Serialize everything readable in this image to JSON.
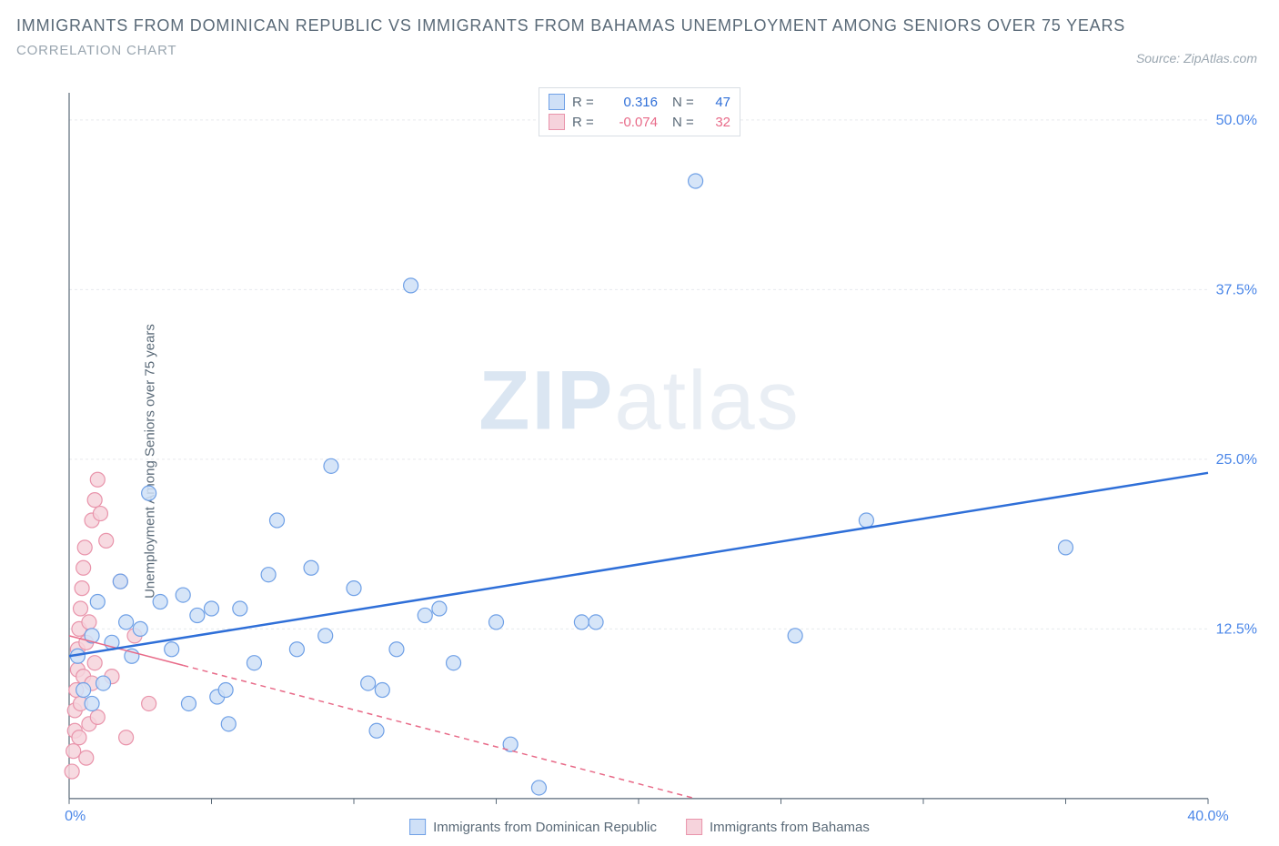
{
  "title_line1": "IMMIGRANTS FROM DOMINICAN REPUBLIC VS IMMIGRANTS FROM BAHAMAS UNEMPLOYMENT AMONG SENIORS OVER 75 YEARS",
  "title_line2": "CORRELATION CHART",
  "source_label": "Source: ZipAtlas.com",
  "y_axis_label": "Unemployment Among Seniors over 75 years",
  "watermark_a": "ZIP",
  "watermark_b": "atlas",
  "chart": {
    "type": "scatter",
    "background_color": "#ffffff",
    "grid_color": "#e6e9ed",
    "axis_line_color": "#5a6a78",
    "label_color": "#4a86e8",
    "xlim": [
      0,
      40
    ],
    "ylim": [
      0,
      52
    ],
    "xtick_labels": {
      "0": "0.0%",
      "40": "40.0%"
    },
    "xtick_positions": [
      0,
      5,
      10,
      15,
      20,
      25,
      30,
      35,
      40
    ],
    "ytick_labels": {
      "12.5": "12.5%",
      "25": "25.0%",
      "37.5": "37.5%",
      "50": "50.0%"
    },
    "ytick_positions": [
      12.5,
      25,
      37.5,
      50
    ],
    "legend_panel": {
      "series1": {
        "r_label": "R =",
        "r_value": "0.316",
        "r_color": "#2f6fd8",
        "n_label": "N =",
        "n_value": "47"
      },
      "series2": {
        "r_label": "R =",
        "r_value": "-0.074",
        "r_color": "#e86a88",
        "n_label": "N =",
        "n_value": "32"
      }
    },
    "bottom_legend": {
      "series1_label": "Immigrants from Dominican Republic",
      "series2_label": "Immigrants from Bahamas"
    },
    "series": [
      {
        "name": "Immigrants from Dominican Republic",
        "marker_color_fill": "#cfe0f7",
        "marker_color_stroke": "#6fa0e6",
        "marker_radius": 8,
        "trend_line_color": "#2f6fd8",
        "trend_line_width": 2.5,
        "trend_line_dash": "none",
        "trend": {
          "x1": 0,
          "y1": 10.5,
          "x2": 40,
          "y2": 24.0
        },
        "points": [
          [
            0.3,
            10.5
          ],
          [
            0.5,
            8.0
          ],
          [
            0.8,
            7.0
          ],
          [
            0.8,
            12.0
          ],
          [
            1.0,
            14.5
          ],
          [
            1.2,
            8.5
          ],
          [
            1.5,
            11.5
          ],
          [
            1.8,
            16.0
          ],
          [
            2.0,
            13.0
          ],
          [
            2.2,
            10.5
          ],
          [
            2.5,
            12.5
          ],
          [
            2.8,
            22.5
          ],
          [
            3.2,
            14.5
          ],
          [
            3.6,
            11.0
          ],
          [
            4.0,
            15.0
          ],
          [
            4.2,
            7.0
          ],
          [
            4.5,
            13.5
          ],
          [
            5.0,
            14.0
          ],
          [
            5.2,
            7.5
          ],
          [
            5.5,
            8.0
          ],
          [
            5.6,
            5.5
          ],
          [
            6.0,
            14.0
          ],
          [
            6.5,
            10.0
          ],
          [
            7.0,
            16.5
          ],
          [
            7.3,
            20.5
          ],
          [
            8.0,
            11.0
          ],
          [
            8.5,
            17.0
          ],
          [
            9.0,
            12.0
          ],
          [
            9.2,
            24.5
          ],
          [
            10.0,
            15.5
          ],
          [
            10.5,
            8.5
          ],
          [
            10.8,
            5.0
          ],
          [
            11.0,
            8.0
          ],
          [
            11.5,
            11.0
          ],
          [
            12.0,
            37.8
          ],
          [
            12.5,
            13.5
          ],
          [
            13.0,
            14.0
          ],
          [
            13.5,
            10.0
          ],
          [
            15.0,
            13.0
          ],
          [
            15.5,
            4.0
          ],
          [
            16.5,
            0.8
          ],
          [
            18.0,
            13.0
          ],
          [
            22.0,
            45.5
          ],
          [
            25.5,
            12.0
          ],
          [
            28.0,
            20.5
          ],
          [
            35.0,
            18.5
          ],
          [
            18.5,
            13.0
          ]
        ]
      },
      {
        "name": "Immigrants from Bahamas",
        "marker_color_fill": "#f6d3dc",
        "marker_color_stroke": "#e994ab",
        "marker_radius": 8,
        "trend_line_color": "#e86a88",
        "trend_line_width": 1.5,
        "trend_line_dash": "6,5",
        "trend_solid_until_x": 4,
        "trend": {
          "x1": 0,
          "y1": 12.0,
          "x2": 22,
          "y2": 0.0
        },
        "points": [
          [
            0.1,
            2.0
          ],
          [
            0.15,
            3.5
          ],
          [
            0.2,
            5.0
          ],
          [
            0.2,
            6.5
          ],
          [
            0.25,
            8.0
          ],
          [
            0.3,
            9.5
          ],
          [
            0.3,
            11.0
          ],
          [
            0.35,
            12.5
          ],
          [
            0.35,
            4.5
          ],
          [
            0.4,
            14.0
          ],
          [
            0.4,
            7.0
          ],
          [
            0.45,
            15.5
          ],
          [
            0.5,
            17.0
          ],
          [
            0.5,
            9.0
          ],
          [
            0.55,
            18.5
          ],
          [
            0.6,
            11.5
          ],
          [
            0.6,
            3.0
          ],
          [
            0.7,
            13.0
          ],
          [
            0.7,
            5.5
          ],
          [
            0.8,
            20.5
          ],
          [
            0.8,
            8.5
          ],
          [
            0.9,
            22.0
          ],
          [
            0.9,
            10.0
          ],
          [
            1.0,
            23.5
          ],
          [
            1.0,
            6.0
          ],
          [
            1.1,
            21.0
          ],
          [
            1.3,
            19.0
          ],
          [
            1.5,
            9.0
          ],
          [
            1.8,
            16.0
          ],
          [
            2.0,
            4.5
          ],
          [
            2.3,
            12.0
          ],
          [
            2.8,
            7.0
          ]
        ]
      }
    ]
  }
}
